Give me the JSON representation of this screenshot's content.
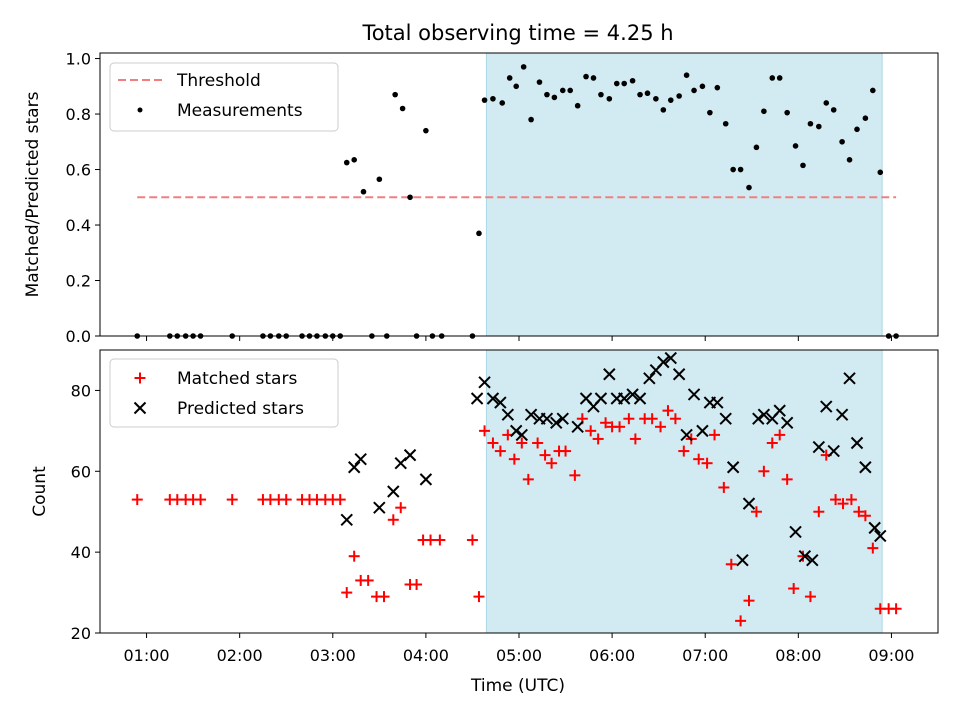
{
  "colors": {
    "threshold": "#f08080",
    "measurement": "#000000",
    "matched": "#ff0000",
    "predicted": "#000000",
    "shade": "#add8e6"
  },
  "chart_data": [
    {
      "type": "scatter",
      "title": "Total observing time = 4.25 h",
      "xlabel": "",
      "ylabel": "Matched/Predicted stars",
      "ylim": [
        0,
        1.02
      ],
      "yticks": [
        "0.0",
        "0.2",
        "0.4",
        "0.6",
        "0.8",
        "1.0"
      ],
      "xlim": [
        0.5,
        9.5
      ],
      "xticks": [
        1,
        2,
        3,
        4,
        5,
        6,
        7,
        8,
        9
      ],
      "shaded_region_hours": [
        4.65,
        8.9
      ],
      "legend": {
        "position": "upper left",
        "threshold_label": "Threshold",
        "measurements_label": "Measurements"
      },
      "threshold": {
        "name": "Threshold",
        "y": 0.5,
        "x_range": [
          0.9,
          9.05
        ]
      },
      "measurements": {
        "name": "Measurements",
        "points": [
          [
            0.9,
            0.0
          ],
          [
            1.25,
            0.0
          ],
          [
            1.33,
            0.0
          ],
          [
            1.42,
            0.0
          ],
          [
            1.5,
            0.0
          ],
          [
            1.58,
            0.0
          ],
          [
            1.92,
            0.0
          ],
          [
            2.25,
            0.0
          ],
          [
            2.33,
            0.0
          ],
          [
            2.42,
            0.0
          ],
          [
            2.5,
            0.0
          ],
          [
            2.67,
            0.0
          ],
          [
            2.75,
            0.0
          ],
          [
            2.83,
            0.0
          ],
          [
            2.92,
            0.0
          ],
          [
            3.0,
            0.0
          ],
          [
            3.08,
            0.0
          ],
          [
            3.15,
            0.625
          ],
          [
            3.23,
            0.635
          ],
          [
            3.33,
            0.52
          ],
          [
            3.42,
            0.0
          ],
          [
            3.5,
            0.565
          ],
          [
            3.58,
            0.0
          ],
          [
            3.67,
            0.87
          ],
          [
            3.75,
            0.82
          ],
          [
            3.83,
            0.5
          ],
          [
            3.9,
            0.0
          ],
          [
            4.0,
            0.74
          ],
          [
            4.07,
            0.0
          ],
          [
            4.17,
            0.0
          ],
          [
            4.5,
            0.0
          ],
          [
            4.57,
            0.37
          ],
          [
            4.63,
            0.85
          ],
          [
            4.72,
            0.855
          ],
          [
            4.82,
            0.84
          ],
          [
            4.9,
            0.93
          ],
          [
            4.97,
            0.9
          ],
          [
            5.05,
            0.97
          ],
          [
            5.13,
            0.78
          ],
          [
            5.22,
            0.915
          ],
          [
            5.3,
            0.87
          ],
          [
            5.38,
            0.86
          ],
          [
            5.47,
            0.885
          ],
          [
            5.55,
            0.885
          ],
          [
            5.63,
            0.83
          ],
          [
            5.72,
            0.935
          ],
          [
            5.8,
            0.93
          ],
          [
            5.88,
            0.87
          ],
          [
            5.97,
            0.855
          ],
          [
            6.05,
            0.91
          ],
          [
            6.13,
            0.91
          ],
          [
            6.22,
            0.92
          ],
          [
            6.3,
            0.87
          ],
          [
            6.38,
            0.875
          ],
          [
            6.47,
            0.855
          ],
          [
            6.55,
            0.815
          ],
          [
            6.63,
            0.85
          ],
          [
            6.72,
            0.865
          ],
          [
            6.8,
            0.94
          ],
          [
            6.88,
            0.885
          ],
          [
            6.97,
            0.9
          ],
          [
            7.05,
            0.805
          ],
          [
            7.13,
            0.895
          ],
          [
            7.22,
            0.765
          ],
          [
            7.3,
            0.6
          ],
          [
            7.38,
            0.6
          ],
          [
            7.47,
            0.535
          ],
          [
            7.55,
            0.68
          ],
          [
            7.63,
            0.81
          ],
          [
            7.72,
            0.93
          ],
          [
            7.8,
            0.93
          ],
          [
            7.88,
            0.805
          ],
          [
            7.97,
            0.685
          ],
          [
            8.05,
            0.615
          ],
          [
            8.13,
            0.765
          ],
          [
            8.22,
            0.755
          ],
          [
            8.3,
            0.84
          ],
          [
            8.38,
            0.815
          ],
          [
            8.47,
            0.7
          ],
          [
            8.55,
            0.635
          ],
          [
            8.63,
            0.745
          ],
          [
            8.72,
            0.785
          ],
          [
            8.8,
            0.885
          ],
          [
            8.88,
            0.59
          ],
          [
            8.97,
            0.0
          ],
          [
            9.05,
            0.0
          ]
        ]
      }
    },
    {
      "type": "scatter",
      "title": "",
      "xlabel": "Time (UTC)",
      "ylabel": "Count",
      "ylim": [
        20,
        90
      ],
      "yticks": [
        "20",
        "40",
        "60",
        "80"
      ],
      "xlim": [
        0.5,
        9.5
      ],
      "xticks": [
        1,
        2,
        3,
        4,
        5,
        6,
        7,
        8,
        9
      ],
      "xtick_labels": [
        "01:00",
        "02:00",
        "03:00",
        "04:00",
        "05:00",
        "06:00",
        "07:00",
        "08:00",
        "09:00"
      ],
      "shaded_region_hours": [
        4.65,
        8.9
      ],
      "legend": {
        "position": "upper left",
        "matched_label": "Matched stars",
        "predicted_label": "Predicted stars"
      },
      "matched": {
        "name": "Matched stars",
        "points": [
          [
            0.9,
            53
          ],
          [
            1.25,
            53
          ],
          [
            1.33,
            53
          ],
          [
            1.42,
            53
          ],
          [
            1.5,
            53
          ],
          [
            1.58,
            53
          ],
          [
            1.92,
            53
          ],
          [
            2.25,
            53
          ],
          [
            2.33,
            53
          ],
          [
            2.42,
            53
          ],
          [
            2.5,
            53
          ],
          [
            2.67,
            53
          ],
          [
            2.75,
            53
          ],
          [
            2.83,
            53
          ],
          [
            2.92,
            53
          ],
          [
            3.0,
            53
          ],
          [
            3.08,
            53
          ],
          [
            3.15,
            30
          ],
          [
            3.23,
            39
          ],
          [
            3.3,
            33
          ],
          [
            3.38,
            33
          ],
          [
            3.47,
            29
          ],
          [
            3.55,
            29
          ],
          [
            3.65,
            48
          ],
          [
            3.73,
            51
          ],
          [
            3.83,
            32
          ],
          [
            3.9,
            32
          ],
          [
            3.97,
            43
          ],
          [
            4.05,
            43
          ],
          [
            4.15,
            43
          ],
          [
            4.5,
            43
          ],
          [
            4.57,
            29
          ],
          [
            4.63,
            70
          ],
          [
            4.72,
            67
          ],
          [
            4.8,
            65
          ],
          [
            4.88,
            69
          ],
          [
            4.95,
            63
          ],
          [
            5.03,
            67
          ],
          [
            5.1,
            58
          ],
          [
            5.2,
            67
          ],
          [
            5.28,
            64
          ],
          [
            5.35,
            62
          ],
          [
            5.43,
            65
          ],
          [
            5.5,
            65
          ],
          [
            5.6,
            59
          ],
          [
            5.68,
            73
          ],
          [
            5.77,
            70
          ],
          [
            5.85,
            68
          ],
          [
            5.93,
            72
          ],
          [
            6.0,
            71
          ],
          [
            6.08,
            71
          ],
          [
            6.18,
            73
          ],
          [
            6.25,
            68
          ],
          [
            6.35,
            73
          ],
          [
            6.43,
            73
          ],
          [
            6.52,
            71
          ],
          [
            6.6,
            75
          ],
          [
            6.68,
            73
          ],
          [
            6.77,
            65
          ],
          [
            6.85,
            68
          ],
          [
            6.93,
            63
          ],
          [
            7.02,
            62
          ],
          [
            7.1,
            69
          ],
          [
            7.2,
            56
          ],
          [
            7.28,
            37
          ],
          [
            7.38,
            23
          ],
          [
            7.47,
            28
          ],
          [
            7.55,
            50
          ],
          [
            7.63,
            60
          ],
          [
            7.72,
            67
          ],
          [
            7.8,
            69
          ],
          [
            7.88,
            58
          ],
          [
            7.95,
            31
          ],
          [
            8.05,
            39
          ],
          [
            8.13,
            29
          ],
          [
            8.22,
            50
          ],
          [
            8.3,
            64
          ],
          [
            8.4,
            53
          ],
          [
            8.48,
            52
          ],
          [
            8.57,
            53
          ],
          [
            8.65,
            50
          ],
          [
            8.72,
            49
          ],
          [
            8.8,
            41
          ],
          [
            8.88,
            26
          ],
          [
            8.97,
            26
          ],
          [
            9.05,
            26
          ]
        ]
      },
      "predicted": {
        "name": "Predicted stars",
        "points": [
          [
            3.15,
            48
          ],
          [
            3.23,
            61
          ],
          [
            3.3,
            63
          ],
          [
            3.5,
            51
          ],
          [
            3.65,
            55
          ],
          [
            3.73,
            62
          ],
          [
            3.83,
            64
          ],
          [
            4.0,
            58
          ],
          [
            4.55,
            78
          ],
          [
            4.63,
            82
          ],
          [
            4.72,
            78
          ],
          [
            4.8,
            77
          ],
          [
            4.88,
            74
          ],
          [
            4.97,
            70
          ],
          [
            5.03,
            69
          ],
          [
            5.13,
            74
          ],
          [
            5.22,
            73
          ],
          [
            5.3,
            73
          ],
          [
            5.4,
            72
          ],
          [
            5.47,
            73
          ],
          [
            5.63,
            71
          ],
          [
            5.72,
            78
          ],
          [
            5.8,
            76
          ],
          [
            5.88,
            78
          ],
          [
            5.97,
            84
          ],
          [
            6.05,
            78
          ],
          [
            6.13,
            78
          ],
          [
            6.22,
            79
          ],
          [
            6.3,
            78
          ],
          [
            6.4,
            83
          ],
          [
            6.47,
            85
          ],
          [
            6.55,
            87
          ],
          [
            6.63,
            88
          ],
          [
            6.72,
            84
          ],
          [
            6.8,
            69
          ],
          [
            6.88,
            79
          ],
          [
            6.97,
            70
          ],
          [
            7.05,
            77
          ],
          [
            7.13,
            77
          ],
          [
            7.22,
            73
          ],
          [
            7.3,
            61
          ],
          [
            7.4,
            38
          ],
          [
            7.47,
            52
          ],
          [
            7.57,
            73
          ],
          [
            7.63,
            74
          ],
          [
            7.72,
            73
          ],
          [
            7.8,
            75
          ],
          [
            7.88,
            72
          ],
          [
            7.97,
            45
          ],
          [
            8.07,
            39
          ],
          [
            8.15,
            38
          ],
          [
            8.22,
            66
          ],
          [
            8.3,
            76
          ],
          [
            8.38,
            65
          ],
          [
            8.47,
            74
          ],
          [
            8.55,
            83
          ],
          [
            8.63,
            67
          ],
          [
            8.72,
            61
          ],
          [
            8.82,
            46
          ],
          [
            8.88,
            44
          ]
        ]
      }
    }
  ]
}
